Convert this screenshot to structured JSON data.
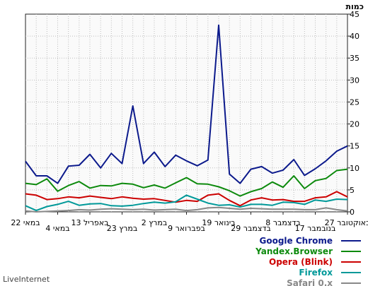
{
  "chart_data": {
    "type": "line",
    "ylabel": "כמות",
    "ylim": [
      0,
      45
    ],
    "yticks": [
      0,
      5,
      10,
      15,
      20,
      25,
      30,
      35,
      40,
      45
    ],
    "xlabels": [
      "22 במאי",
      "4 במאי",
      "13 באפריל",
      "23 במרץ",
      "2 במרץ",
      "9 בפברואר",
      "19 בינואר",
      "29 בדצמבר",
      "8 בדצמבר",
      "17 בנובמבר",
      "27 באוקטובר"
    ],
    "xlabel_positions": [
      0,
      3,
      6,
      9,
      12,
      15,
      18,
      21,
      24,
      27,
      30
    ],
    "grid": true,
    "legend_position": "bottom-right",
    "series": [
      {
        "name": "Google Chrome",
        "color": "#0c1a8c",
        "values": [
          11.5,
          8.2,
          8.2,
          6.5,
          10.4,
          10.6,
          13.1,
          10.0,
          13.3,
          11.0,
          24.1,
          11.0,
          13.6,
          10.3,
          12.9,
          11.6,
          10.5,
          11.8,
          42.5,
          8.6,
          6.5,
          9.7,
          10.3,
          8.8,
          9.5,
          11.9,
          8.3,
          9.8,
          11.6,
          13.8,
          15.0
        ]
      },
      {
        "name": "Yandex.Browser",
        "color": "#0d8a0d",
        "values": [
          6.5,
          6.2,
          7.5,
          4.7,
          6.0,
          6.9,
          5.4,
          6.0,
          5.9,
          6.5,
          6.3,
          5.5,
          6.1,
          5.4,
          6.6,
          7.8,
          6.4,
          6.3,
          5.7,
          4.8,
          3.6,
          4.6,
          5.3,
          6.8,
          5.6,
          8.2,
          5.3,
          7.1,
          7.6,
          9.4,
          9.7
        ]
      },
      {
        "name": "Opera (Blink)",
        "color": "#cc0000",
        "values": [
          4.1,
          3.8,
          2.8,
          3.0,
          3.4,
          3.2,
          3.6,
          3.3,
          3.0,
          3.4,
          3.1,
          2.9,
          3.0,
          2.6,
          2.2,
          2.6,
          2.4,
          3.8,
          4.1,
          2.6,
          1.4,
          2.7,
          3.2,
          2.7,
          2.8,
          2.4,
          2.4,
          3.2,
          3.4,
          4.6,
          3.4
        ]
      },
      {
        "name": "Firefox",
        "color": "#009999",
        "values": [
          1.4,
          0.3,
          1.2,
          1.7,
          2.4,
          1.5,
          1.8,
          1.9,
          1.4,
          1.3,
          1.5,
          1.9,
          2.2,
          2.0,
          2.3,
          3.8,
          2.9,
          2.0,
          1.5,
          1.6,
          1.1,
          1.7,
          1.7,
          1.5,
          2.2,
          2.1,
          1.7,
          2.7,
          2.4,
          2.9,
          2.8
        ]
      },
      {
        "name": "Safari 0.x",
        "color": "#888888",
        "values": [
          0.2,
          0.0,
          0.1,
          0.2,
          0.3,
          0.5,
          0.4,
          0.6,
          0.7,
          0.6,
          0.5,
          0.6,
          0.4,
          0.5,
          0.6,
          0.3,
          0.5,
          0.9,
          1.0,
          0.8,
          0.6,
          0.8,
          0.7,
          0.6,
          0.6,
          0.6,
          0.5,
          0.5,
          0.9,
          0.5,
          0.2
        ]
      }
    ]
  },
  "footer": {
    "brand": "LiveInternet"
  }
}
